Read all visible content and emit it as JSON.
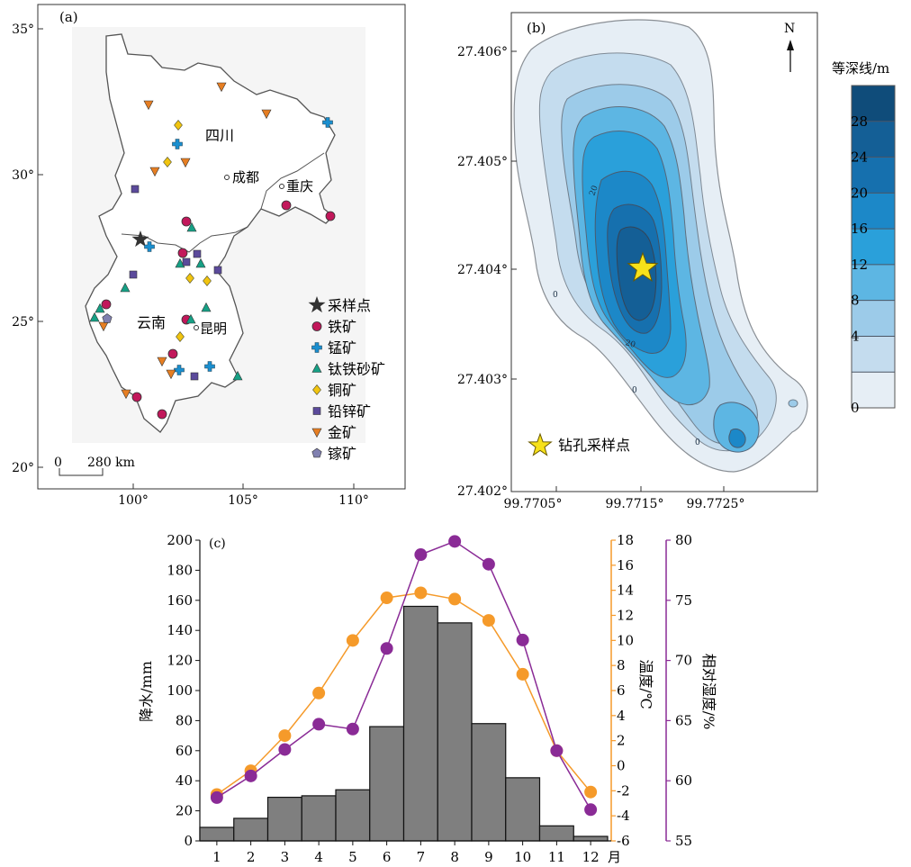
{
  "colors": {
    "precip_bar": "#7f7f7f",
    "temperature": "#f59a2a",
    "humidity": "#8a2b96",
    "iron": "#c2185b",
    "manganese": "#1a8fd0",
    "ilmenite": "#16a085",
    "copper": "#f1c40f",
    "leadzinc": "#5b4a9b",
    "gold": "#e67e22",
    "gallium": "#8080b0",
    "sample_star": "#333333",
    "drill_star": "#f7e11a",
    "contour_levels": [
      "#e6eef5",
      "#c4dcee",
      "#9ccbe9",
      "#5db6e3",
      "#2aa0da",
      "#1c88c8",
      "#1670ae",
      "#145f96",
      "#0f4c7a"
    ]
  },
  "panel_a": {
    "label": "(a)",
    "lon_ticks": [
      "100°",
      "105°",
      "110°"
    ],
    "lat_ticks": [
      "35°",
      "30°",
      "25°",
      "20°"
    ],
    "regions": {
      "sichuan": "四川",
      "yunnan": "云南"
    },
    "cities": {
      "chengdu": "成都",
      "chongqing": "重庆",
      "kunming": "昆明"
    },
    "scale_bar": {
      "zero": "0",
      "distance": "280 km"
    },
    "legend": [
      {
        "icon": "star-icon",
        "label": "采样点"
      },
      {
        "icon": "circle-icon",
        "label": "铁矿"
      },
      {
        "icon": "cross-icon",
        "label": "锰矿"
      },
      {
        "icon": "triangle-icon",
        "label": "钛铁砂矿"
      },
      {
        "icon": "diamond-icon",
        "label": "铜矿"
      },
      {
        "icon": "square-icon",
        "label": "铅锌矿"
      },
      {
        "icon": "triangle-down-icon",
        "label": "金矿"
      },
      {
        "icon": "pentagon-icon",
        "label": "镓矿"
      }
    ]
  },
  "panel_b": {
    "label": "(b)",
    "north": "N",
    "lat_ticks": [
      "27.406°",
      "27.405°",
      "27.404°",
      "27.403°",
      "27.402°"
    ],
    "lon_ticks": [
      "99.7705°",
      "99.7715°",
      "99.7725°"
    ],
    "contour_labels": [
      "20",
      "20",
      "0",
      "0",
      "0"
    ],
    "legend_label": "钻孔采样点",
    "colorbar": {
      "title": "等深线/m",
      "ticks": [
        "28",
        "24",
        "20",
        "16",
        "12",
        "8",
        "4",
        "0"
      ]
    }
  },
  "panel_c": {
    "label": "(c)",
    "y_left_label": "降水/mm",
    "y_temp_label": "温度/℃",
    "y_hum_label": "相对湿度/%",
    "x_unit": "月",
    "y_left_ticks": [
      "0",
      "20",
      "40",
      "60",
      "80",
      "100",
      "120",
      "140",
      "160",
      "180",
      "200"
    ],
    "y_temp_ticks": [
      "-6",
      "-4",
      "-2",
      "0",
      "2",
      "4",
      "6",
      "8",
      "10",
      "12",
      "14",
      "16",
      "18"
    ],
    "y_hum_ticks": [
      "55",
      "60",
      "65",
      "70",
      "75",
      "80"
    ]
  },
  "chart_data": {
    "type": "bar",
    "categories": [
      "1",
      "2",
      "3",
      "4",
      "5",
      "6",
      "7",
      "8",
      "9",
      "10",
      "11",
      "12"
    ],
    "series": [
      {
        "name": "降水/mm",
        "type": "bar",
        "axis": "left",
        "values": [
          9,
          15,
          29,
          30,
          34,
          76,
          156,
          145,
          78,
          42,
          10,
          3
        ]
      },
      {
        "name": "温度/℃",
        "type": "line",
        "axis": "right1",
        "values": [
          -2.3,
          -0.4,
          2.4,
          5.8,
          10.0,
          13.4,
          13.8,
          13.3,
          11.6,
          7.3,
          1.2,
          -2.1
        ]
      },
      {
        "name": "相对湿度/%",
        "type": "line",
        "axis": "right2",
        "values": [
          58.6,
          60.4,
          62.6,
          64.7,
          64.3,
          71.0,
          78.8,
          79.9,
          78.0,
          71.7,
          62.5,
          57.6
        ]
      }
    ],
    "ylim_left": [
      0,
      200
    ],
    "ylim_temp": [
      -6,
      18
    ],
    "ylim_hum": [
      55,
      80
    ],
    "xlabel": "月",
    "ylabel": "降水/mm"
  }
}
